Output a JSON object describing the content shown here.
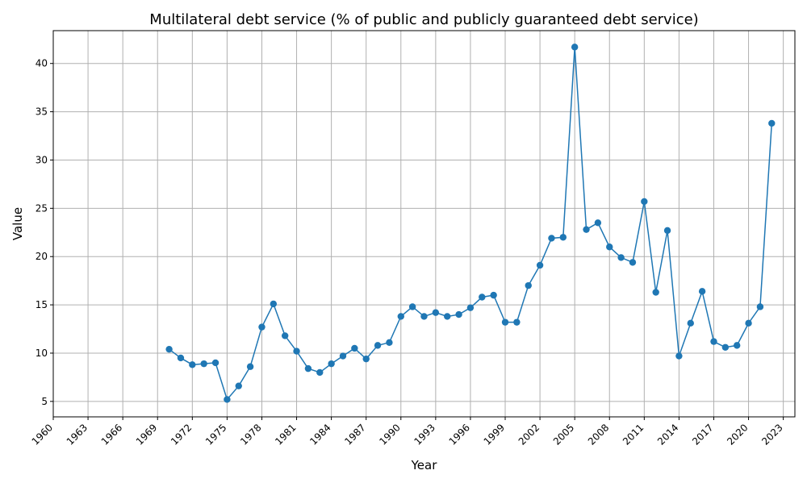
{
  "chart_data": {
    "type": "line",
    "title": "Multilateral debt service (% of public and publicly guaranteed debt service)",
    "xlabel": "Year",
    "ylabel": "Value",
    "xlim": [
      1960,
      2024
    ],
    "ylim": [
      3.4,
      43.4
    ],
    "grid": true,
    "line_color": "#1f77b4",
    "xticks": [
      1960,
      1963,
      1966,
      1969,
      1972,
      1975,
      1978,
      1981,
      1984,
      1987,
      1990,
      1993,
      1996,
      1999,
      2002,
      2005,
      2008,
      2011,
      2014,
      2017,
      2020,
      2023
    ],
    "yticks": [
      5,
      10,
      15,
      20,
      25,
      30,
      35,
      40
    ],
    "series": [
      {
        "x": [
          1970,
          1971,
          1972,
          1973,
          1974,
          1975,
          1976,
          1977,
          1978,
          1979,
          1980,
          1981,
          1982,
          1983,
          1984,
          1985,
          1986,
          1987,
          1988,
          1989,
          1990,
          1991,
          1992,
          1993,
          1994,
          1995,
          1996,
          1997,
          1998,
          1999,
          2000,
          2001,
          2002,
          2003,
          2004,
          2005,
          2006,
          2007,
          2008,
          2009,
          2010,
          2011,
          2012,
          2013,
          2014,
          2015,
          2016,
          2017,
          2018,
          2019,
          2020,
          2021,
          2022
        ],
        "y": [
          10.4,
          9.5,
          8.8,
          8.9,
          9.0,
          5.2,
          6.6,
          8.6,
          12.7,
          15.1,
          11.8,
          10.2,
          8.4,
          8.0,
          8.9,
          9.7,
          10.5,
          9.4,
          10.8,
          11.1,
          13.8,
          14.8,
          13.8,
          14.2,
          13.8,
          14.0,
          14.7,
          15.8,
          16.0,
          13.2,
          13.2,
          17.0,
          19.1,
          21.9,
          22.0,
          41.7,
          22.8,
          23.5,
          21.0,
          19.9,
          19.4,
          25.7,
          16.3,
          22.7,
          9.7,
          13.1,
          16.4,
          11.2,
          10.6,
          10.8,
          13.1,
          14.8,
          33.8
        ]
      }
    ]
  }
}
